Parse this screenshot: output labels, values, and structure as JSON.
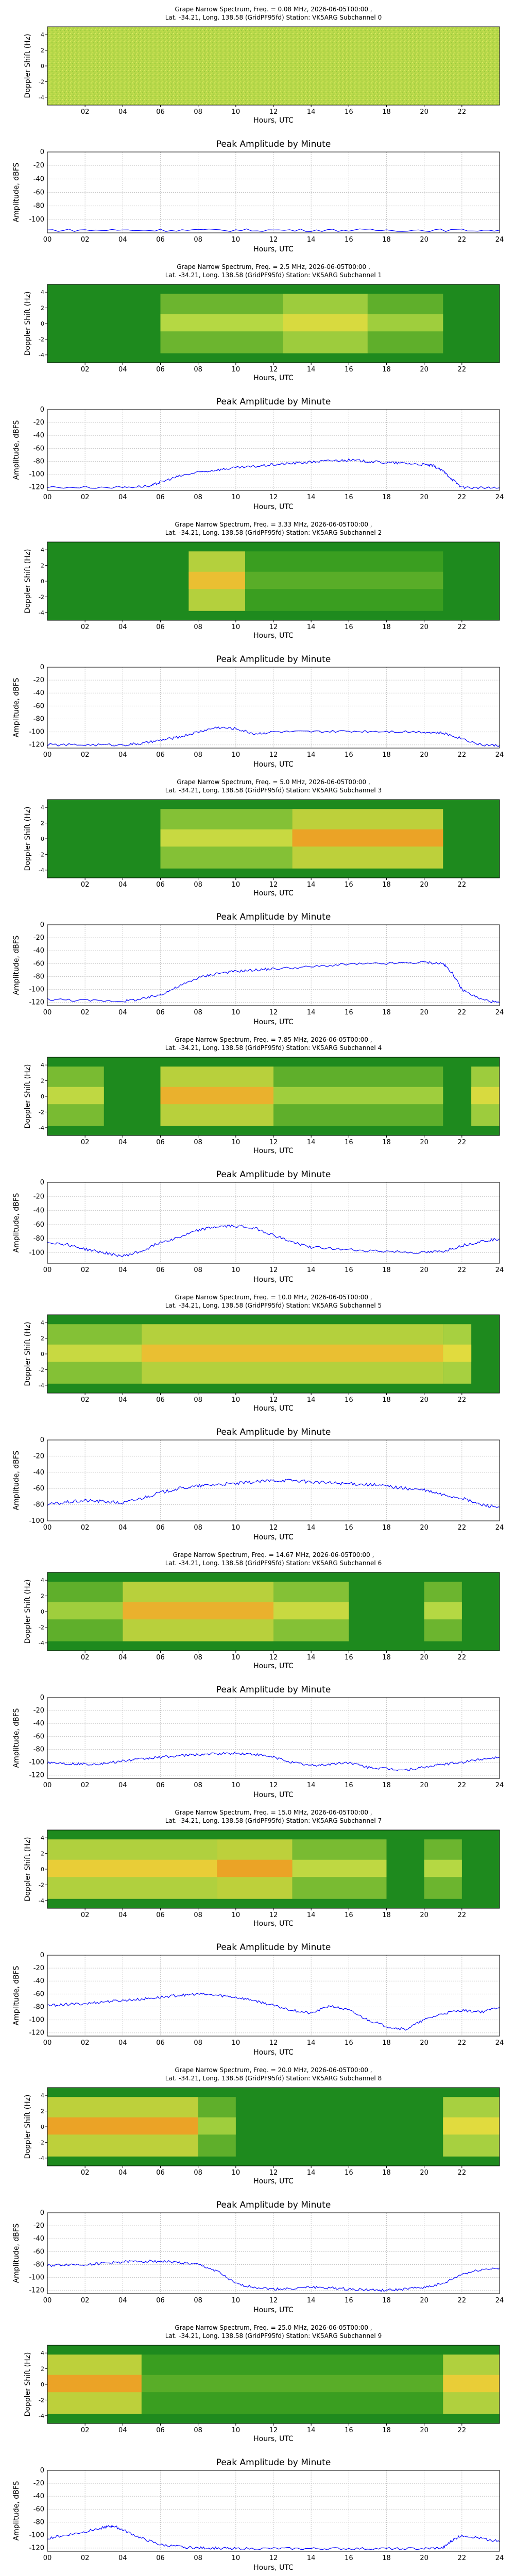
{
  "common": {
    "subtitle": "Lat. -34.21, Long. 138.58 (GridPF95fd) Station: VK5ARG Subchannel",
    "title_prefix": "Grape Narrow Spectrum, Freq. = ",
    "title_suffix": " MHz, 2026-06-05T00:00 ,",
    "spec_ylabel": "Doppler Shift (Hz)",
    "xlabel": "Hours, UTC",
    "spec_yticks": [
      "4",
      "2",
      "0",
      "-2",
      "-4"
    ],
    "spec_xticks": [
      "02",
      "04",
      "06",
      "08",
      "10",
      "12",
      "14",
      "16",
      "18",
      "20",
      "22"
    ],
    "amp_title": "Peak Amplitude by Minute",
    "amp_ylabel": "Amplitude, dBFS",
    "amp_xticks": [
      "00",
      "02",
      "04",
      "06",
      "08",
      "10",
      "12",
      "14",
      "16",
      "18",
      "20",
      "22",
      "24"
    ],
    "amp_yticks": [
      "0",
      "-20",
      "-40",
      "-60",
      "-80",
      "-100",
      "-120"
    ],
    "line_color": "#0000ff"
  },
  "chart_data": [
    {
      "type": "heatmap",
      "freq": "0.08",
      "subchannel": "0",
      "title": "Grape Narrow Spectrum, Freq. = 0.08 MHz, 2026-06-05T00:00 ,",
      "xlim": [
        0,
        24
      ],
      "ylim": [
        -5,
        5
      ],
      "activity": []
    },
    {
      "type": "line",
      "title": "Peak Amplitude by Minute",
      "ylim": [
        -120,
        0
      ],
      "xlim": [
        0,
        24
      ],
      "yticks": [
        "0",
        "-20",
        "-40",
        "-60",
        "-80",
        "-100"
      ],
      "x": [
        0,
        4,
        8,
        12,
        16,
        20,
        24
      ],
      "y": [
        -116,
        -116,
        -116,
        -116,
        -116,
        -116,
        -116
      ]
    },
    {
      "type": "heatmap",
      "freq": "2.5",
      "subchannel": "1",
      "title": "Grape Narrow Spectrum, Freq. = 2.5 MHz, 2026-06-05T00:00 ,",
      "xlim": [
        0,
        24
      ],
      "ylim": [
        -5,
        5
      ],
      "activity": [
        {
          "x": [
            6,
            12.5
          ],
          "i": 0.35
        },
        {
          "x": [
            12.5,
            17
          ],
          "i": 0.55
        },
        {
          "x": [
            17,
            21
          ],
          "i": 0.3
        }
      ]
    },
    {
      "type": "line",
      "title": "Peak Amplitude by Minute",
      "ylim": [
        -125,
        0
      ],
      "xlim": [
        0,
        24
      ],
      "yticks": [
        "0",
        "-20",
        "-40",
        "-60",
        "-80",
        "-100",
        "-120"
      ],
      "x": [
        0,
        4,
        5.5,
        6,
        7,
        8,
        9,
        10,
        11,
        12,
        13,
        14,
        15,
        16,
        17,
        18,
        19,
        20,
        20.5,
        21,
        21.5,
        22,
        23,
        24
      ],
      "y": [
        -120,
        -120,
        -118,
        -112,
        -103,
        -97,
        -93,
        -90,
        -88,
        -85,
        -83,
        -81,
        -79,
        -78,
        -80,
        -82,
        -83,
        -85,
        -87,
        -95,
        -108,
        -120,
        -121,
        -121
      ]
    },
    {
      "type": "heatmap",
      "freq": "3.33",
      "subchannel": "2",
      "title": "Grape Narrow Spectrum, Freq. = 3.33 MHz, 2026-06-05T00:00 ,",
      "xlim": [
        0,
        24
      ],
      "ylim": [
        -5,
        5
      ],
      "activity": [
        {
          "x": [
            7.5,
            10.5
          ],
          "i": 0.75
        },
        {
          "x": [
            10.5,
            21
          ],
          "i": 0.15
        }
      ]
    },
    {
      "type": "line",
      "title": "Peak Amplitude by Minute",
      "ylim": [
        -125,
        0
      ],
      "xlim": [
        0,
        24
      ],
      "yticks": [
        "0",
        "-20",
        "-40",
        "-60",
        "-80",
        "-100",
        "-120"
      ],
      "x": [
        0,
        2,
        4,
        5,
        6,
        7,
        8,
        9,
        10,
        11,
        12,
        14,
        16,
        18,
        20,
        21,
        22,
        23,
        24
      ],
      "y": [
        -120,
        -120,
        -120,
        -118,
        -113,
        -108,
        -100,
        -93,
        -95,
        -103,
        -100,
        -100,
        -99,
        -99,
        -100,
        -102,
        -110,
        -120,
        -121
      ]
    },
    {
      "type": "heatmap",
      "freq": "5.0",
      "subchannel": "3",
      "title": "Grape Narrow Spectrum, Freq. = 5.0 MHz, 2026-06-05T00:00 ,",
      "xlim": [
        0,
        24
      ],
      "ylim": [
        -5,
        5
      ],
      "activity": [
        {
          "x": [
            6,
            13
          ],
          "i": 0.45
        },
        {
          "x": [
            13,
            21
          ],
          "i": 0.85
        }
      ]
    },
    {
      "type": "line",
      "title": "Peak Amplitude by Minute",
      "ylim": [
        -125,
        0
      ],
      "xlim": [
        0,
        24
      ],
      "yticks": [
        "0",
        "-20",
        "-40",
        "-60",
        "-80",
        "-100",
        "-120"
      ],
      "x": [
        0,
        2,
        4,
        5,
        6,
        7,
        8,
        9,
        10,
        11,
        12,
        14,
        16,
        18,
        20,
        21,
        21.5,
        22,
        23,
        24
      ],
      "y": [
        -115,
        -117,
        -118,
        -115,
        -108,
        -95,
        -82,
        -75,
        -72,
        -70,
        -68,
        -65,
        -61,
        -60,
        -58,
        -60,
        -75,
        -100,
        -115,
        -121
      ]
    },
    {
      "type": "heatmap",
      "freq": "7.85",
      "subchannel": "4",
      "title": "Grape Narrow Spectrum, Freq. = 7.85 MHz, 2026-06-05T00:00 ,",
      "xlim": [
        0,
        24
      ],
      "ylim": [
        -5,
        5
      ],
      "activity": [
        {
          "x": [
            0,
            3
          ],
          "i": 0.4
        },
        {
          "x": [
            6,
            12
          ],
          "i": 0.8
        },
        {
          "x": [
            12,
            21
          ],
          "i": 0.3
        },
        {
          "x": [
            22.5,
            24
          ],
          "i": 0.55
        }
      ]
    },
    {
      "type": "line",
      "title": "Peak Amplitude by Minute",
      "ylim": [
        -115,
        0
      ],
      "xlim": [
        0,
        24
      ],
      "yticks": [
        "0",
        "-20",
        "-40",
        "-60",
        "-80",
        "-100"
      ],
      "x": [
        0,
        1,
        2,
        3,
        4,
        5,
        6,
        7,
        8,
        9,
        10,
        11,
        12,
        13,
        14,
        16,
        18,
        20,
        21,
        22,
        23,
        24
      ],
      "y": [
        -85,
        -88,
        -95,
        -100,
        -105,
        -98,
        -85,
        -78,
        -68,
        -63,
        -62,
        -65,
        -75,
        -85,
        -92,
        -96,
        -98,
        -100,
        -98,
        -90,
        -84,
        -80
      ]
    },
    {
      "type": "heatmap",
      "freq": "10.0",
      "subchannel": "5",
      "title": "Grape Narrow Spectrum, Freq. = 10.0 MHz, 2026-06-05T00:00 ,",
      "xlim": [
        0,
        24
      ],
      "ylim": [
        -5,
        5
      ],
      "activity": [
        {
          "x": [
            0,
            5
          ],
          "i": 0.45
        },
        {
          "x": [
            5,
            21
          ],
          "i": 0.75
        },
        {
          "x": [
            21,
            22.5
          ],
          "i": 0.6
        }
      ]
    },
    {
      "type": "line",
      "title": "Peak Amplitude by Minute",
      "ylim": [
        -100,
        0
      ],
      "xlim": [
        0,
        24
      ],
      "yticks": [
        "0",
        "-20",
        "-40",
        "-60",
        "-80",
        "-100"
      ],
      "x": [
        0,
        1,
        2,
        3,
        4,
        5,
        6,
        7,
        8,
        9,
        10,
        11,
        12,
        13,
        14,
        15,
        16,
        17,
        18,
        19,
        20,
        21,
        22,
        23,
        24
      ],
      "y": [
        -80,
        -77,
        -75,
        -76,
        -78,
        -72,
        -65,
        -60,
        -57,
        -55,
        -54,
        -52,
        -50,
        -50,
        -52,
        -53,
        -54,
        -55,
        -57,
        -60,
        -62,
        -68,
        -72,
        -80,
        -83
      ]
    },
    {
      "type": "heatmap",
      "freq": "14.67",
      "subchannel": "6",
      "title": "Grape Narrow Spectrum, Freq. = 14.67 MHz, 2026-06-05T00:00 ,",
      "xlim": [
        0,
        24
      ],
      "ylim": [
        -5,
        5
      ],
      "activity": [
        {
          "x": [
            0,
            4
          ],
          "i": 0.3
        },
        {
          "x": [
            4,
            12
          ],
          "i": 0.8
        },
        {
          "x": [
            12,
            16
          ],
          "i": 0.45
        },
        {
          "x": [
            20,
            22
          ],
          "i": 0.35
        }
      ]
    },
    {
      "type": "line",
      "title": "Peak Amplitude by Minute",
      "ylim": [
        -125,
        0
      ],
      "xlim": [
        0,
        24
      ],
      "yticks": [
        "0",
        "-20",
        "-40",
        "-60",
        "-80",
        "-100",
        "-120"
      ],
      "x": [
        0,
        1,
        2,
        3,
        4,
        5,
        6,
        7,
        8,
        9,
        10,
        11,
        12,
        13,
        14,
        15,
        16,
        17,
        18,
        19,
        20,
        21,
        22,
        23,
        24
      ],
      "y": [
        -100,
        -102,
        -103,
        -102,
        -98,
        -95,
        -92,
        -90,
        -88,
        -87,
        -86,
        -88,
        -92,
        -100,
        -105,
        -103,
        -100,
        -108,
        -110,
        -112,
        -108,
        -103,
        -100,
        -95,
        -92
      ]
    },
    {
      "type": "heatmap",
      "freq": "15.0",
      "subchannel": "7",
      "title": "Grape Narrow Spectrum, Freq. = 15.0 MHz, 2026-06-05T00:00 ,",
      "xlim": [
        0,
        24
      ],
      "ylim": [
        -5,
        5
      ],
      "activity": [
        {
          "x": [
            0,
            9
          ],
          "i": 0.7
        },
        {
          "x": [
            9,
            13
          ],
          "i": 0.85
        },
        {
          "x": [
            13,
            18
          ],
          "i": 0.4
        },
        {
          "x": [
            20,
            22
          ],
          "i": 0.35
        }
      ]
    },
    {
      "type": "line",
      "title": "Peak Amplitude by Minute",
      "ylim": [
        -125,
        0
      ],
      "xlim": [
        0,
        24
      ],
      "yticks": [
        "0",
        "-20",
        "-40",
        "-60",
        "-80",
        "-100",
        "-120"
      ],
      "x": [
        0,
        1,
        2,
        3,
        4,
        5,
        6,
        7,
        8,
        9,
        10,
        11,
        12,
        13,
        14,
        15,
        16,
        17,
        18,
        19,
        20,
        21,
        22,
        23,
        24
      ],
      "y": [
        -78,
        -76,
        -75,
        -72,
        -70,
        -68,
        -65,
        -62,
        -60,
        -62,
        -65,
        -70,
        -78,
        -85,
        -90,
        -78,
        -85,
        -100,
        -110,
        -115,
        -100,
        -90,
        -85,
        -88,
        -80
      ]
    },
    {
      "type": "heatmap",
      "freq": "20.0",
      "subchannel": "8",
      "title": "Grape Narrow Spectrum, Freq. = 20.0 MHz, 2026-06-05T00:00 ,",
      "xlim": [
        0,
        24
      ],
      "ylim": [
        -5,
        5
      ],
      "activity": [
        {
          "x": [
            0,
            8
          ],
          "i": 0.85
        },
        {
          "x": [
            8,
            10
          ],
          "i": 0.3
        },
        {
          "x": [
            21,
            24
          ],
          "i": 0.6
        }
      ]
    },
    {
      "type": "line",
      "title": "Peak Amplitude by Minute",
      "ylim": [
        -125,
        0
      ],
      "xlim": [
        0,
        24
      ],
      "yticks": [
        "0",
        "-20",
        "-40",
        "-60",
        "-80",
        "-100",
        "-120"
      ],
      "x": [
        0,
        1,
        2,
        3,
        4,
        5,
        6,
        7,
        8,
        9,
        10,
        11,
        12,
        13,
        14,
        15,
        16,
        17,
        18,
        19,
        20,
        21,
        22,
        23,
        24
      ],
      "y": [
        -82,
        -80,
        -80,
        -78,
        -76,
        -75,
        -75,
        -77,
        -80,
        -90,
        -110,
        -115,
        -118,
        -117,
        -115,
        -116,
        -118,
        -119,
        -120,
        -118,
        -115,
        -110,
        -95,
        -88,
        -85
      ]
    },
    {
      "type": "heatmap",
      "freq": "25.0",
      "subchannel": "9",
      "title": "Grape Narrow Spectrum, Freq. = 25.0 MHz, 2026-06-05T00:00 ,",
      "xlim": [
        0,
        24
      ],
      "ylim": [
        -5,
        5
      ],
      "activity": [
        {
          "x": [
            0,
            5
          ],
          "i": 0.85
        },
        {
          "x": [
            5,
            21
          ],
          "i": 0.15
        },
        {
          "x": [
            21,
            24
          ],
          "i": 0.7
        }
      ]
    },
    {
      "type": "line",
      "title": "Peak Amplitude by Minute",
      "ylim": [
        -125,
        0
      ],
      "xlim": [
        0,
        24
      ],
      "yticks": [
        "0",
        "-20",
        "-40",
        "-60",
        "-80",
        "-100",
        "-120"
      ],
      "x": [
        0,
        1,
        2,
        3,
        3.5,
        4,
        5,
        6,
        7,
        8,
        9,
        10,
        12,
        14,
        16,
        18,
        20,
        21,
        21.5,
        22,
        23,
        24
      ],
      "y": [
        -105,
        -100,
        -95,
        -88,
        -86,
        -92,
        -105,
        -115,
        -118,
        -120,
        -120,
        -121,
        -121,
        -121,
        -121,
        -121,
        -121,
        -120,
        -108,
        -100,
        -105,
        -110
      ]
    }
  ]
}
